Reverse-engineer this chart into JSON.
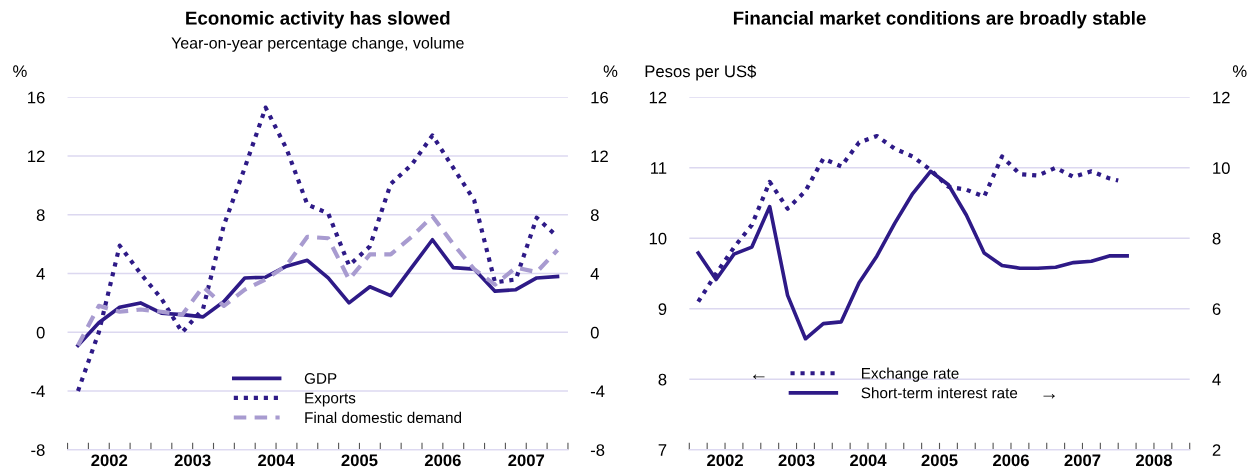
{
  "chart_data": [
    {
      "type": "line",
      "title": "Economic activity has slowed",
      "subtitle": "Year-on-year percentage change, volume",
      "ylabel": "%",
      "y2label": "%",
      "x": [
        2002.125,
        2002.375,
        2002.625,
        2002.875,
        2003.125,
        2003.375,
        2003.625,
        2003.875,
        2004.125,
        2004.375,
        2004.625,
        2004.875,
        2005.125,
        2005.375,
        2005.625,
        2005.875,
        2006.125,
        2006.375,
        2006.625,
        2006.875,
        2007.125,
        2007.375,
        2007.625,
        2007.875
      ],
      "series": [
        {
          "name": "GDP",
          "color": "#2e1a87",
          "line_style": "solid",
          "values": [
            -0.9,
            0.65,
            1.7,
            2.0,
            1.3,
            1.2,
            1.05,
            2.1,
            3.7,
            3.75,
            4.5,
            4.9,
            3.7,
            2.0,
            3.1,
            2.5,
            4.4,
            6.3,
            4.4,
            4.3,
            2.8,
            2.9,
            3.7,
            3.8
          ]
        },
        {
          "name": "Exports",
          "color": "#2e1a87",
          "line_style": "dotted",
          "values": [
            -4.0,
            0.0,
            5.9,
            4.0,
            2.3,
            0.0,
            1.6,
            7.3,
            11.2,
            15.3,
            12.5,
            8.7,
            8.1,
            4.55,
            5.85,
            10.1,
            11.4,
            13.4,
            11.2,
            9.0,
            3.4,
            3.6,
            7.8,
            6.5
          ]
        },
        {
          "name": "Final domestic demand",
          "color": "#a89bd0",
          "line_style": "dashed",
          "values": [
            -0.9,
            1.8,
            1.4,
            1.55,
            1.4,
            1.2,
            3.1,
            1.8,
            2.9,
            3.6,
            4.55,
            6.5,
            6.4,
            3.6,
            5.3,
            5.3,
            6.5,
            7.9,
            6.0,
            4.3,
            3.25,
            4.4,
            4.1,
            5.6
          ]
        }
      ],
      "xlim": [
        2002,
        2008
      ],
      "xticks": [
        {
          "value": 2002,
          "label": null
        },
        {
          "value": 2002.25,
          "label": null
        },
        {
          "value": 2002.5,
          "label": "2002"
        },
        {
          "value": 2002.75,
          "label": null
        },
        {
          "value": 2003,
          "label": null
        },
        {
          "value": 2003.25,
          "label": null
        },
        {
          "value": 2003.5,
          "label": "2003"
        },
        {
          "value": 2003.75,
          "label": null
        },
        {
          "value": 2004,
          "label": null
        },
        {
          "value": 2004.25,
          "label": null
        },
        {
          "value": 2004.5,
          "label": "2004"
        },
        {
          "value": 2004.75,
          "label": null
        },
        {
          "value": 2005,
          "label": null
        },
        {
          "value": 2005.25,
          "label": null
        },
        {
          "value": 2005.5,
          "label": "2005"
        },
        {
          "value": 2005.75,
          "label": null
        },
        {
          "value": 2006,
          "label": null
        },
        {
          "value": 2006.25,
          "label": null
        },
        {
          "value": 2006.5,
          "label": "2006"
        },
        {
          "value": 2006.75,
          "label": null
        },
        {
          "value": 2007,
          "label": null
        },
        {
          "value": 2007.25,
          "label": null
        },
        {
          "value": 2007.5,
          "label": "2007"
        },
        {
          "value": 2007.75,
          "label": null
        },
        {
          "value": 2008,
          "label": null
        }
      ],
      "ylim": [
        -8,
        16
      ],
      "yticks": [
        -8,
        -4,
        0,
        4,
        8,
        12,
        16
      ],
      "y2lim": [
        -8,
        16
      ],
      "y2ticks": [
        -8,
        -4,
        0,
        4,
        8,
        12,
        16
      ],
      "grid": "y",
      "legend": "bottom"
    },
    {
      "type": "line",
      "title": "Financial market conditions are broadly stable",
      "ylabel": "Pesos per US$",
      "y2label": "%",
      "x": [
        2002.125,
        2002.375,
        2002.625,
        2002.875,
        2003.125,
        2003.375,
        2003.625,
        2003.875,
        2004.125,
        2004.375,
        2004.625,
        2004.875,
        2005.125,
        2005.375,
        2005.625,
        2005.875,
        2006.125,
        2006.375,
        2006.625,
        2006.875,
        2007.125,
        2007.375,
        2007.625,
        2007.875,
        2008.125
      ],
      "series": [
        {
          "name": "Exchange rate",
          "color": "#2e1a87",
          "line_style": "dotted",
          "x": [
            2002.125,
            2002.375,
            2002.625,
            2002.875,
            2003.125,
            2003.375,
            2003.625,
            2003.875,
            2004.125,
            2004.375,
            2004.625,
            2004.875,
            2005.125,
            2005.375,
            2005.625,
            2005.875,
            2006.125,
            2006.375,
            2006.625,
            2006.875,
            2007.125,
            2007.375,
            2007.625,
            2007.875,
            2008.0
          ],
          "values": [
            9.1,
            9.5,
            9.87,
            10.19,
            10.8,
            10.42,
            10.67,
            11.13,
            11.02,
            11.36,
            11.45,
            11.27,
            11.16,
            10.97,
            10.73,
            10.69,
            10.59,
            11.16,
            10.91,
            10.89,
            11.0,
            10.87,
            10.95,
            10.85,
            10.82
          ]
        },
        {
          "name": "Short-term interest rate",
          "color": "#2e1a87",
          "line_style": "solid",
          "axis": "y2",
          "values": [
            7.58,
            6.83,
            7.55,
            7.75,
            8.9,
            6.38,
            5.15,
            5.58,
            5.63,
            6.74,
            7.5,
            8.43,
            9.27,
            9.9,
            9.52,
            8.66,
            7.58,
            7.23,
            7.15,
            7.15,
            7.18,
            7.31,
            7.35,
            7.5,
            7.5
          ]
        }
      ],
      "annotations": [
        "←",
        "→"
      ],
      "xlim": [
        2002,
        2009
      ],
      "xticks": [
        {
          "value": 2002,
          "label": null
        },
        {
          "value": 2002.25,
          "label": null
        },
        {
          "value": 2002.5,
          "label": "2002"
        },
        {
          "value": 2002.75,
          "label": null
        },
        {
          "value": 2003,
          "label": null
        },
        {
          "value": 2003.25,
          "label": null
        },
        {
          "value": 2003.5,
          "label": "2003"
        },
        {
          "value": 2003.75,
          "label": null
        },
        {
          "value": 2004,
          "label": null
        },
        {
          "value": 2004.25,
          "label": null
        },
        {
          "value": 2004.5,
          "label": "2004"
        },
        {
          "value": 2004.75,
          "label": null
        },
        {
          "value": 2005,
          "label": null
        },
        {
          "value": 2005.25,
          "label": null
        },
        {
          "value": 2005.5,
          "label": "2005"
        },
        {
          "value": 2005.75,
          "label": null
        },
        {
          "value": 2006,
          "label": null
        },
        {
          "value": 2006.25,
          "label": null
        },
        {
          "value": 2006.5,
          "label": "2006"
        },
        {
          "value": 2006.75,
          "label": null
        },
        {
          "value": 2007,
          "label": null
        },
        {
          "value": 2007.25,
          "label": null
        },
        {
          "value": 2007.5,
          "label": "2007"
        },
        {
          "value": 2007.75,
          "label": null
        },
        {
          "value": 2008,
          "label": null
        },
        {
          "value": 2008.25,
          "label": null
        },
        {
          "value": 2008.5,
          "label": "2008"
        },
        {
          "value": 2008.75,
          "label": null
        },
        {
          "value": 2009,
          "label": null
        }
      ],
      "ylim": [
        7,
        12
      ],
      "yticks": [
        7,
        8,
        9,
        10,
        11,
        12
      ],
      "y2lim": [
        2,
        12
      ],
      "y2ticks": [
        2,
        4,
        6,
        8,
        10,
        12
      ],
      "grid": "y",
      "legend": "bottom"
    }
  ]
}
